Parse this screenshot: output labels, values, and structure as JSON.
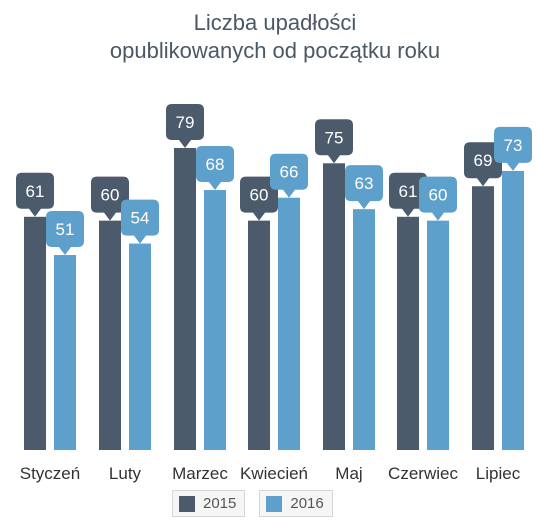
{
  "chart_data": {
    "type": "bar",
    "title_lines": [
      "Liczba upadłości",
      "opublikowanych od początku roku"
    ],
    "categories": [
      "Styczeń",
      "Luty",
      "Marzec",
      "Kwiecień",
      "Maj",
      "Czerwiec",
      "Lipiec"
    ],
    "series": [
      {
        "name": "2015",
        "color": "#4b5b6b",
        "values": [
          61,
          60,
          79,
          60,
          75,
          61,
          69
        ]
      },
      {
        "name": "2016",
        "color": "#5ea0cc",
        "values": [
          51,
          54,
          68,
          66,
          63,
          60,
          73
        ]
      }
    ],
    "ylim": [
      0,
      80
    ],
    "grid": false,
    "data_labels": true,
    "legend_position": "bottom"
  }
}
